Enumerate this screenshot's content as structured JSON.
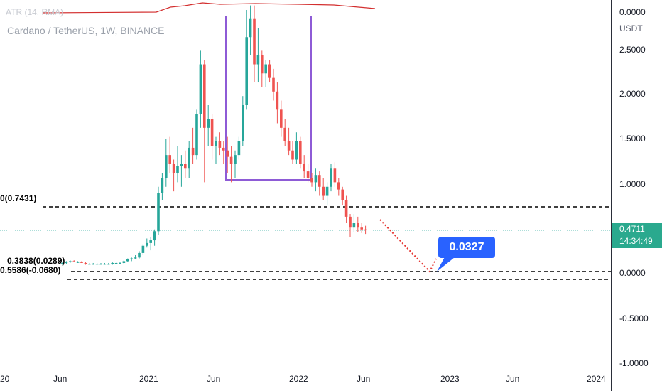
{
  "header": {
    "symbol": "Cardano / TetherUS, 1W, BINANCE",
    "indicator": "ATR (14, RMA)"
  },
  "price_axis": {
    "unit": "USDT",
    "ticks": [
      "2.5000",
      "2.0000",
      "1.5000",
      "1.0000",
      "0.0000",
      "-0.5000",
      "-1.0000"
    ],
    "indicator_tick": "0.0000"
  },
  "time_axis": {
    "ticks": [
      "20",
      "Jun",
      "2021",
      "Jun",
      "2022",
      "Jun",
      "2023",
      "Jun",
      "2024"
    ]
  },
  "last_price": {
    "value": "0.4711",
    "countdown": "14:34:49",
    "color": "#2aa98e"
  },
  "callout": {
    "value": "0.0327",
    "color": "#2962ff"
  },
  "fib_labels": {
    "upper": "0(0.7431)",
    "lower_a": "0.3838(0.0289)",
    "lower_b": "0.5586(-0.0680)"
  },
  "colors": {
    "up": "#26a69a",
    "down": "#ef5350",
    "atr": "#d32f2f",
    "box": "#8e5bd6",
    "projection": "#e53935"
  },
  "chart_data": {
    "type": "candlestick",
    "title": "Cardano / TetherUS, 1W, BINANCE",
    "xlabel": "",
    "ylabel": "USDT",
    "ylim": [
      -1.0,
      2.95
    ],
    "candles": [
      {
        "o": 0.1,
        "h": 0.12,
        "l": 0.09,
        "c": 0.11
      },
      {
        "o": 0.11,
        "h": 0.13,
        "l": 0.1,
        "c": 0.12
      },
      {
        "o": 0.12,
        "h": 0.14,
        "l": 0.11,
        "c": 0.13
      },
      {
        "o": 0.13,
        "h": 0.14,
        "l": 0.12,
        "c": 0.12
      },
      {
        "o": 0.12,
        "h": 0.13,
        "l": 0.11,
        "c": 0.12
      },
      {
        "o": 0.12,
        "h": 0.13,
        "l": 0.11,
        "c": 0.11
      },
      {
        "o": 0.11,
        "h": 0.12,
        "l": 0.09,
        "c": 0.1
      },
      {
        "o": 0.1,
        "h": 0.11,
        "l": 0.09,
        "c": 0.1
      },
      {
        "o": 0.1,
        "h": 0.11,
        "l": 0.09,
        "c": 0.1
      },
      {
        "o": 0.1,
        "h": 0.11,
        "l": 0.09,
        "c": 0.1
      },
      {
        "o": 0.1,
        "h": 0.11,
        "l": 0.09,
        "c": 0.1
      },
      {
        "o": 0.1,
        "h": 0.11,
        "l": 0.09,
        "c": 0.1
      },
      {
        "o": 0.1,
        "h": 0.11,
        "l": 0.09,
        "c": 0.1
      },
      {
        "o": 0.1,
        "h": 0.12,
        "l": 0.09,
        "c": 0.11
      },
      {
        "o": 0.11,
        "h": 0.12,
        "l": 0.1,
        "c": 0.11
      },
      {
        "o": 0.11,
        "h": 0.12,
        "l": 0.1,
        "c": 0.11
      },
      {
        "o": 0.11,
        "h": 0.14,
        "l": 0.1,
        "c": 0.13
      },
      {
        "o": 0.13,
        "h": 0.16,
        "l": 0.12,
        "c": 0.15
      },
      {
        "o": 0.15,
        "h": 0.17,
        "l": 0.13,
        "c": 0.16
      },
      {
        "o": 0.16,
        "h": 0.2,
        "l": 0.15,
        "c": 0.17
      },
      {
        "o": 0.17,
        "h": 0.24,
        "l": 0.16,
        "c": 0.22
      },
      {
        "o": 0.22,
        "h": 0.32,
        "l": 0.2,
        "c": 0.3
      },
      {
        "o": 0.3,
        "h": 0.38,
        "l": 0.28,
        "c": 0.33
      },
      {
        "o": 0.33,
        "h": 0.4,
        "l": 0.25,
        "c": 0.36
      },
      {
        "o": 0.36,
        "h": 0.48,
        "l": 0.3,
        "c": 0.46
      },
      {
        "o": 0.46,
        "h": 0.95,
        "l": 0.42,
        "c": 0.88
      },
      {
        "o": 0.88,
        "h": 1.1,
        "l": 0.8,
        "c": 1.05
      },
      {
        "o": 1.05,
        "h": 1.48,
        "l": 0.95,
        "c": 1.3
      },
      {
        "o": 1.3,
        "h": 1.5,
        "l": 1.1,
        "c": 1.2
      },
      {
        "o": 1.2,
        "h": 1.25,
        "l": 0.9,
        "c": 1.1
      },
      {
        "o": 1.1,
        "h": 1.4,
        "l": 1.0,
        "c": 1.18
      },
      {
        "o": 1.18,
        "h": 1.3,
        "l": 0.95,
        "c": 1.2
      },
      {
        "o": 1.2,
        "h": 1.35,
        "l": 1.05,
        "c": 1.15
      },
      {
        "o": 1.15,
        "h": 1.45,
        "l": 1.05,
        "c": 1.38
      },
      {
        "o": 1.38,
        "h": 1.6,
        "l": 1.2,
        "c": 1.3
      },
      {
        "o": 1.3,
        "h": 1.8,
        "l": 1.25,
        "c": 1.75
      },
      {
        "o": 1.75,
        "h": 2.45,
        "l": 1.6,
        "c": 2.3
      },
      {
        "o": 2.3,
        "h": 2.35,
        "l": 1.0,
        "c": 1.6
      },
      {
        "o": 1.6,
        "h": 1.85,
        "l": 1.4,
        "c": 1.7
      },
      {
        "o": 1.7,
        "h": 1.75,
        "l": 1.25,
        "c": 1.4
      },
      {
        "o": 1.4,
        "h": 1.5,
        "l": 1.2,
        "c": 1.45
      },
      {
        "o": 1.45,
        "h": 1.55,
        "l": 1.3,
        "c": 1.38
      },
      {
        "o": 1.38,
        "h": 1.45,
        "l": 1.2,
        "c": 1.35
      },
      {
        "o": 1.35,
        "h": 1.5,
        "l": 1.1,
        "c": 1.28
      },
      {
        "o": 1.28,
        "h": 1.4,
        "l": 1.0,
        "c": 1.2
      },
      {
        "o": 1.2,
        "h": 1.35,
        "l": 1.05,
        "c": 1.3
      },
      {
        "o": 1.3,
        "h": 1.5,
        "l": 1.25,
        "c": 1.45
      },
      {
        "o": 1.45,
        "h": 1.95,
        "l": 1.4,
        "c": 1.85
      },
      {
        "o": 1.85,
        "h": 2.9,
        "l": 1.8,
        "c": 2.6
      },
      {
        "o": 2.6,
        "h": 2.95,
        "l": 2.4,
        "c": 2.8
      },
      {
        "o": 2.8,
        "h": 2.95,
        "l": 2.1,
        "c": 2.3
      },
      {
        "o": 2.3,
        "h": 2.7,
        "l": 2.1,
        "c": 2.4
      },
      {
        "o": 2.4,
        "h": 2.45,
        "l": 2.05,
        "c": 2.2
      },
      {
        "o": 2.2,
        "h": 2.35,
        "l": 2.05,
        "c": 2.3
      },
      {
        "o": 2.3,
        "h": 2.35,
        "l": 2.1,
        "c": 2.15
      },
      {
        "o": 2.15,
        "h": 2.25,
        "l": 1.9,
        "c": 2.0
      },
      {
        "o": 2.0,
        "h": 2.1,
        "l": 1.65,
        "c": 1.8
      },
      {
        "o": 1.8,
        "h": 1.9,
        "l": 1.5,
        "c": 1.6
      },
      {
        "o": 1.6,
        "h": 1.7,
        "l": 1.4,
        "c": 1.45
      },
      {
        "o": 1.45,
        "h": 1.6,
        "l": 1.3,
        "c": 1.35
      },
      {
        "o": 1.35,
        "h": 1.45,
        "l": 1.2,
        "c": 1.25
      },
      {
        "o": 1.25,
        "h": 1.55,
        "l": 1.2,
        "c": 1.45
      },
      {
        "o": 1.45,
        "h": 1.5,
        "l": 1.15,
        "c": 1.2
      },
      {
        "o": 1.2,
        "h": 1.3,
        "l": 1.05,
        "c": 1.12
      },
      {
        "o": 1.12,
        "h": 1.2,
        "l": 1.0,
        "c": 1.05
      },
      {
        "o": 1.05,
        "h": 1.1,
        "l": 0.95,
        "c": 1.0
      },
      {
        "o": 1.0,
        "h": 1.15,
        "l": 0.9,
        "c": 1.08
      },
      {
        "o": 1.08,
        "h": 1.12,
        "l": 0.85,
        "c": 0.95
      },
      {
        "o": 0.95,
        "h": 1.05,
        "l": 0.8,
        "c": 0.85
      },
      {
        "o": 0.85,
        "h": 1.0,
        "l": 0.75,
        "c": 0.95
      },
      {
        "o": 0.95,
        "h": 1.2,
        "l": 0.9,
        "c": 1.15
      },
      {
        "o": 1.15,
        "h": 1.22,
        "l": 0.95,
        "c": 1.0
      },
      {
        "o": 1.0,
        "h": 1.05,
        "l": 0.85,
        "c": 0.92
      },
      {
        "o": 0.92,
        "h": 0.95,
        "l": 0.75,
        "c": 0.8
      },
      {
        "o": 0.8,
        "h": 0.85,
        "l": 0.55,
        "c": 0.62
      },
      {
        "o": 0.62,
        "h": 0.65,
        "l": 0.4,
        "c": 0.5
      },
      {
        "o": 0.5,
        "h": 0.65,
        "l": 0.45,
        "c": 0.55
      },
      {
        "o": 0.55,
        "h": 0.62,
        "l": 0.45,
        "c": 0.5
      },
      {
        "o": 0.5,
        "h": 0.55,
        "l": 0.44,
        "c": 0.48
      },
      {
        "o": 0.48,
        "h": 0.52,
        "l": 0.43,
        "c": 0.47
      }
    ],
    "atr_label": "ATR (14, RMA)",
    "last_price": 0.4711,
    "target_value": 0.0327
  }
}
